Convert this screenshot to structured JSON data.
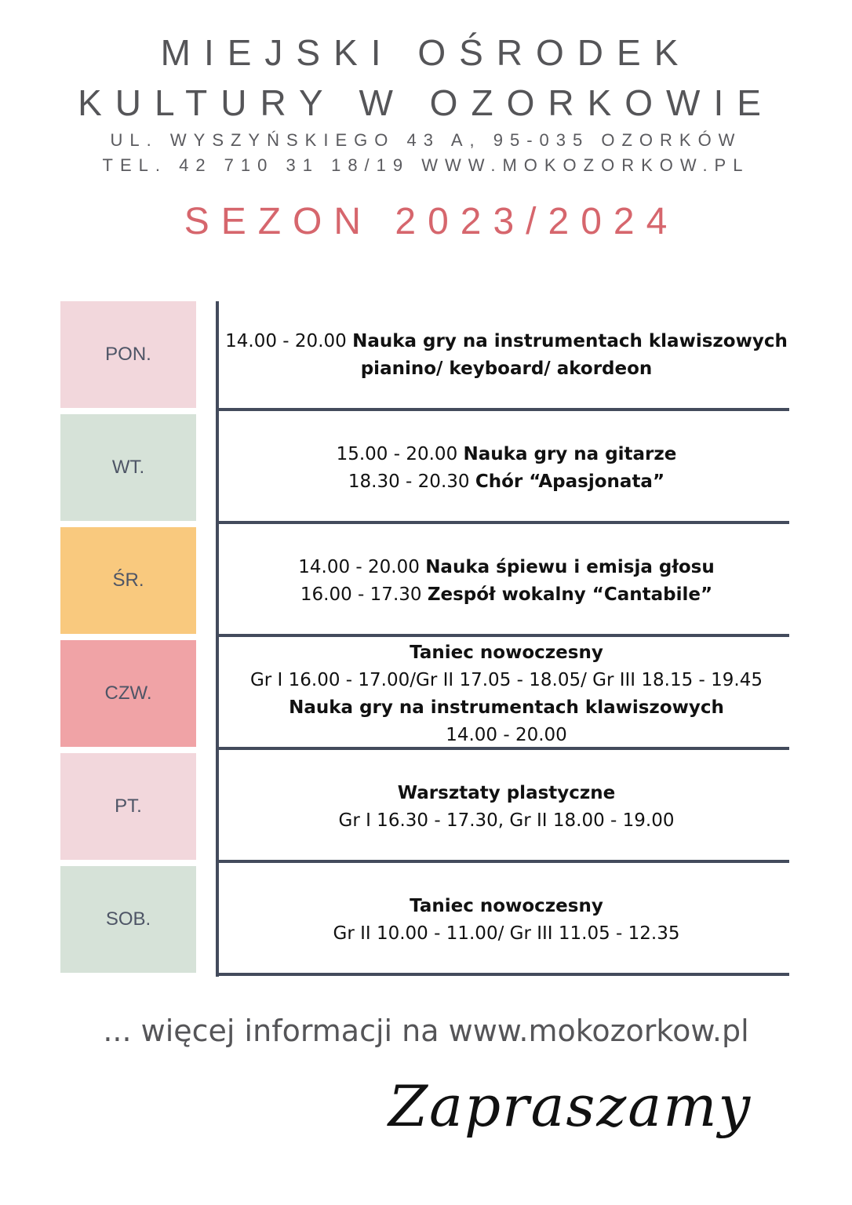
{
  "header": {
    "line1": "MIEJSKI OŚRODEK",
    "line2": "KULTURY W OZORKOWIE",
    "address": "UL. WYSZYŃSKIEGO 43 A, 95-035 OZORKÓW",
    "contact": "TEL. 42 710 31 18/19 WWW.MOKOZORKOW.PL",
    "season": "SEZON 2023/2024"
  },
  "colors": {
    "pink": "#f2d7dc",
    "green": "#d6e2d8",
    "orange": "#f9c97e",
    "rose": "#f0a3a6",
    "line": "#434b5c",
    "accent": "#d6666d"
  },
  "schedule": [
    {
      "day": "PON.",
      "color": "#f2d7dc",
      "lines": [
        [
          {
            "t": "14.00 - 20.00 ",
            "b": false
          },
          {
            "t": "Nauka gry na instrumentach klawiszowych",
            "b": true
          }
        ],
        [
          {
            "t": "pianino/ keyboard/ akordeon",
            "b": true
          }
        ]
      ]
    },
    {
      "day": "WT.",
      "color": "#d6e2d8",
      "lines": [
        [
          {
            "t": "15.00 - 20.00 ",
            "b": false
          },
          {
            "t": "Nauka gry na gitarze",
            "b": true
          }
        ],
        [
          {
            "t": "18.30 - 20.30 ",
            "b": false
          },
          {
            "t": "Chór “Apasjonata”",
            "b": true
          }
        ]
      ]
    },
    {
      "day": "ŚR.",
      "color": "#f9c97e",
      "lines": [
        [
          {
            "t": "14.00 - 20.00 ",
            "b": false
          },
          {
            "t": "Nauka śpiewu i emisja głosu",
            "b": true
          }
        ],
        [
          {
            "t": "16.00 - 17.30 ",
            "b": false
          },
          {
            "t": "Zespół wokalny “Cantabile”",
            "b": true
          }
        ]
      ]
    },
    {
      "day": "CZW.",
      "color": "#f0a3a6",
      "lines": [
        [
          {
            "t": "Taniec nowoczesny",
            "b": true
          }
        ],
        [
          {
            "t": "Gr I 16.00 - 17.00/Gr II 17.05 - 18.05/ Gr III 18.15 - 19.45",
            "b": false
          }
        ],
        [
          {
            "t": "Nauka gry na instrumentach klawiszowych",
            "b": true
          }
        ],
        [
          {
            "t": "14.00 - 20.00",
            "b": false
          }
        ]
      ]
    },
    {
      "day": "PT.",
      "color": "#f2d7dc",
      "lines": [
        [
          {
            "t": "Warsztaty plastyczne",
            "b": true
          }
        ],
        [
          {
            "t": "Gr I 16.30 - 17.30, Gr II 18.00 - 19.00",
            "b": false
          }
        ]
      ]
    },
    {
      "day": "SOB.",
      "color": "#d6e2d8",
      "lines": [
        [
          {
            "t": "Taniec nowoczesny",
            "b": true
          }
        ],
        [
          {
            "t": "Gr II 10.00 - 11.00/ Gr III 11.05 - 12.35",
            "b": false
          }
        ]
      ]
    }
  ],
  "footer": {
    "more_info": "... więcej informacji na www.mokozorkow.pl",
    "signature": "Zapraszamy"
  }
}
